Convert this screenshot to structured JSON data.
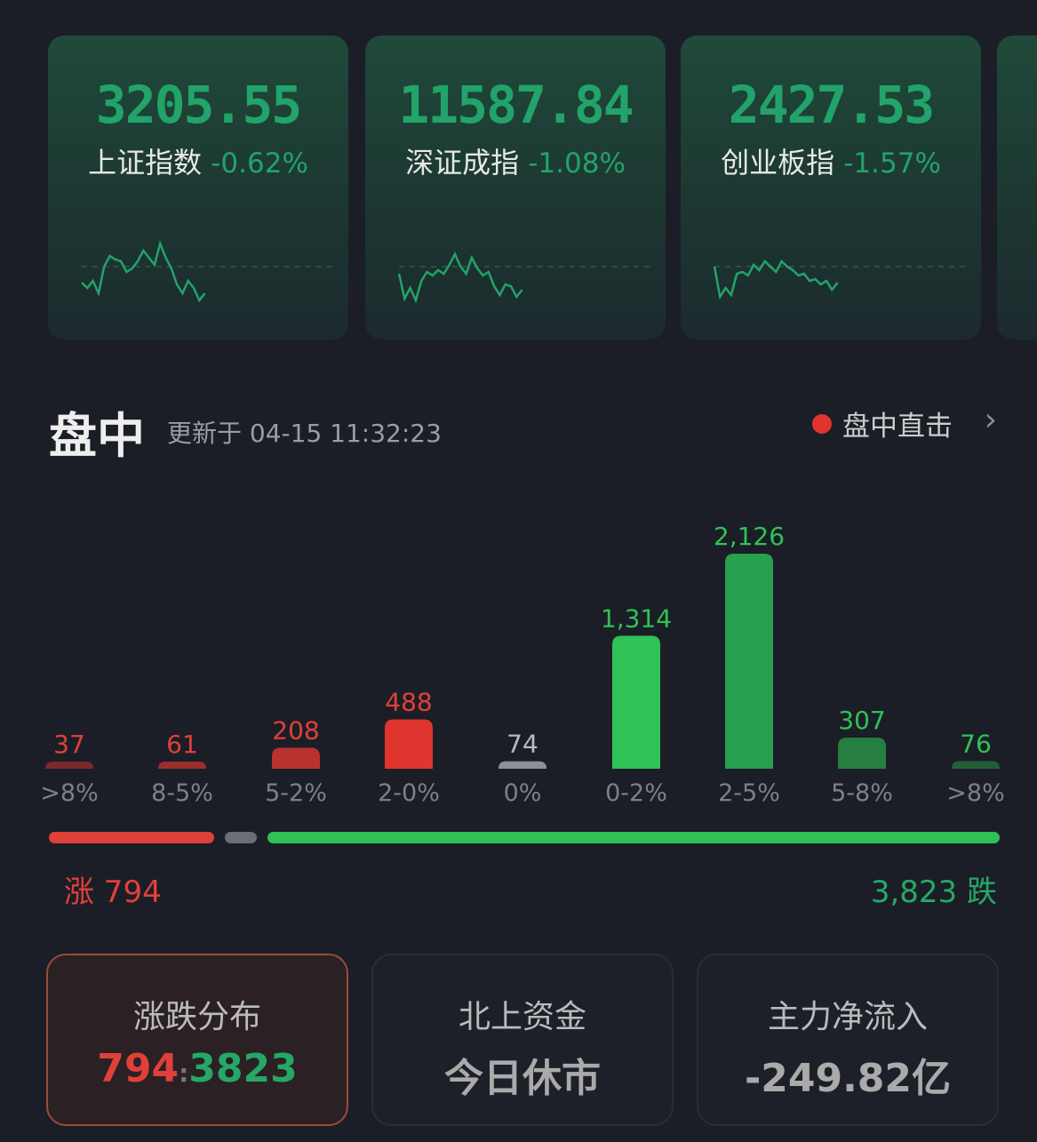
{
  "indices": [
    {
      "value": "3205.55",
      "name": "上证指数",
      "change": "-0.62%"
    },
    {
      "value": "11587.84",
      "name": "深证成指",
      "change": "-1.08%"
    },
    {
      "value": "2427.53",
      "name": "创业板指",
      "change": "-1.57%"
    }
  ],
  "section": {
    "title": "盘中",
    "updated": "更新于 04-15 11:32:23",
    "live_label": "盘中直击"
  },
  "chart_data": {
    "type": "bar",
    "categories": [
      ">8%",
      "8-5%",
      "5-2%",
      "2-0%",
      "0%",
      "0-2%",
      "2-5%",
      "5-8%",
      ">8%"
    ],
    "values": [
      37,
      61,
      208,
      488,
      74,
      1314,
      2126,
      307,
      76
    ],
    "value_labels": [
      "37",
      "61",
      "208",
      "488",
      "74",
      "1,314",
      "2,126",
      "307",
      "76"
    ],
    "colors": [
      "#7a2a2a",
      "#9b2f2c",
      "#b8332f",
      "#e0352f",
      "#8e9099",
      "#2fc257",
      "#27a04f",
      "#267f40",
      "#235f36"
    ],
    "label_colors": [
      "#e0403a",
      "#e0403a",
      "#e0403a",
      "#e0403a",
      "#b9bbc2",
      "#2fc257",
      "#2fc257",
      "#2fc257",
      "#2fc257"
    ]
  },
  "summary": {
    "rise_label": "涨 794",
    "fall_label": "3,823 跌",
    "rise": 794,
    "flat": 74,
    "fall": 3823,
    "colors": {
      "rise": "#e0403a",
      "flat": "#6b6e77",
      "fall": "#2fc257"
    }
  },
  "boxes": [
    {
      "title": "涨跌分布",
      "rise": "794",
      "sep": ":",
      "fall": "3823"
    },
    {
      "title": "北上资金",
      "value": "今日休市"
    },
    {
      "title": "主力净流入",
      "value": "-249.82亿"
    }
  ]
}
